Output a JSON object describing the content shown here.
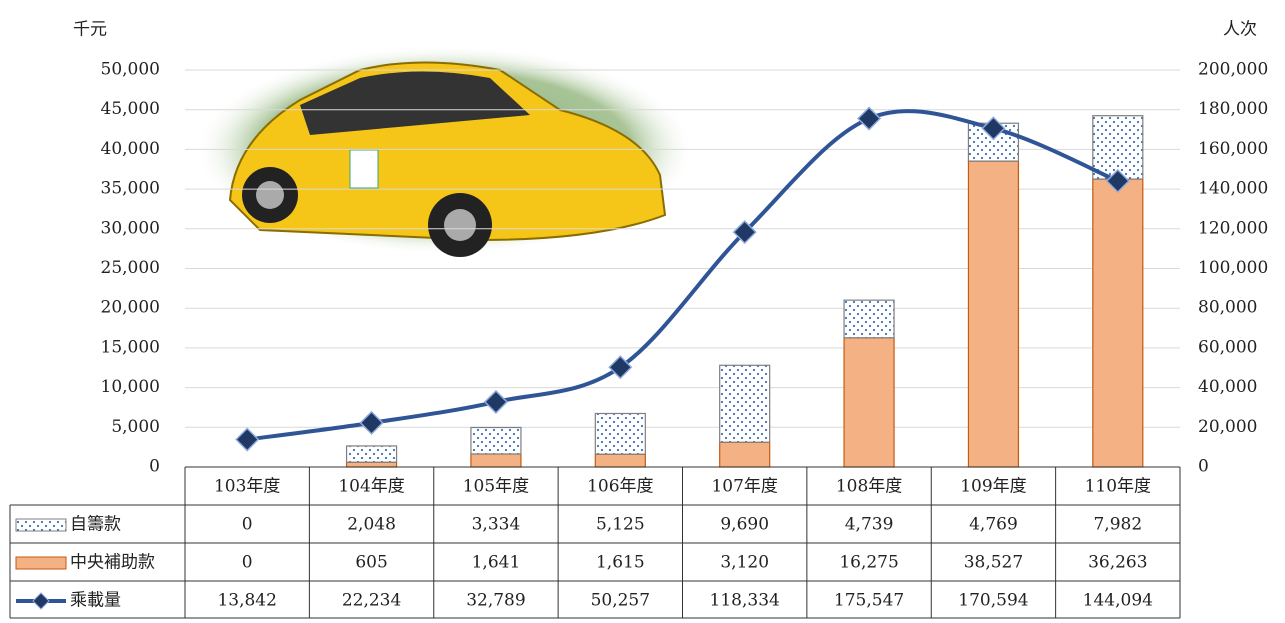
{
  "chart_data": {
    "type": "bar",
    "y_label": "千元",
    "y2_label": "人次",
    "categories": [
      "103年度",
      "104年度",
      "105年度",
      "106年度",
      "107年度",
      "108年度",
      "109年度",
      "110年度"
    ],
    "ylim": [
      0,
      50000
    ],
    "yticks": [
      0,
      {
        "value": 5000,
        "label": "5,000"
      },
      {
        "value": 10000,
        "label": "10,000"
      },
      {
        "value": 15000,
        "label": "15,000"
      },
      {
        "value": 20000,
        "label": "20,000"
      },
      {
        "value": 25000,
        "label": "25,000"
      },
      {
        "value": 30000,
        "label": "30,000"
      },
      {
        "value": 35000,
        "label": "35,000"
      },
      {
        "value": 40000,
        "label": "40,000"
      },
      {
        "value": 45000,
        "label": "45,000"
      },
      {
        "value": 50000,
        "label": "50,000"
      }
    ],
    "y2lim": [
      0,
      200000
    ],
    "y2ticks": [
      0,
      {
        "value": 20000,
        "label": "20,000"
      },
      {
        "value": 40000,
        "label": "40,000"
      },
      {
        "value": 60000,
        "label": "60,000"
      },
      {
        "value": 80000,
        "label": "80,000"
      },
      {
        "value": 100000,
        "label": "100,000"
      },
      {
        "value": 120000,
        "label": "120,000"
      },
      {
        "value": 140000,
        "label": "140,000"
      },
      {
        "value": 160000,
        "label": "160,000"
      },
      {
        "value": 180000,
        "label": "180,000"
      },
      {
        "value": 200000,
        "label": "200,000"
      }
    ],
    "grid": true,
    "series": [
      {
        "name": "自籌款",
        "color": "#3d6fb6",
        "values": [
          0,
          2048,
          3334,
          5125,
          9690,
          4739,
          4769,
          7982
        ],
        "value_labels": [
          "0",
          "2,048",
          "3,334",
          "5,125",
          "9,690",
          "4,739",
          "4,769",
          "7,982"
        ]
      },
      {
        "name": "中央補助款",
        "color": "#f4b183",
        "values": [
          0,
          605,
          1641,
          1615,
          3120,
          16275,
          38527,
          36263
        ],
        "value_labels": [
          "0",
          "605",
          "1,641",
          "1,615",
          "3,120",
          "16,275",
          "38,527",
          "36,263"
        ]
      },
      {
        "name": "乘載量",
        "type": "line",
        "axis": "y2",
        "color": "#2f5597",
        "values": [
          13842,
          22234,
          32789,
          50257,
          118334,
          175547,
          170594,
          144094
        ],
        "value_labels": [
          "13,842",
          "22,234",
          "32,789",
          "50,257",
          "118,334",
          "175,547",
          "170,594",
          "144,094"
        ]
      }
    ]
  }
}
